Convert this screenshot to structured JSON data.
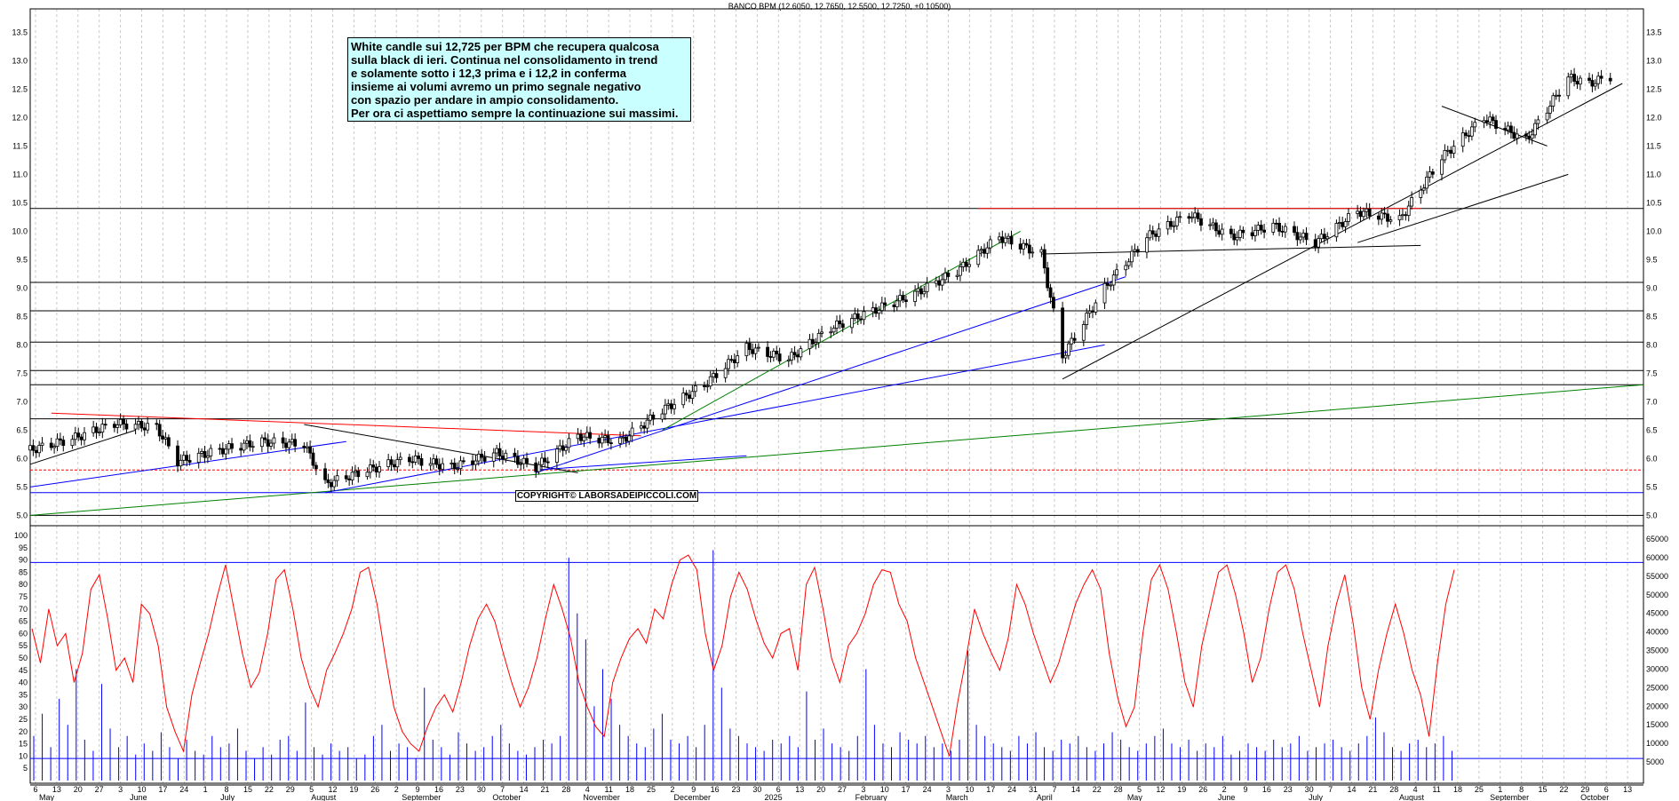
{
  "header": {
    "title": "BANCO BPM (12.6050, 12.7650, 12.5500, 12.7250, +0.10500)"
  },
  "note": {
    "lines": [
      "White candle sui 12,725 per BPM che recupera qualcosa",
      "sulla black di ieri. Continua nel consolidamento in trend",
      "e solamente sotto i 12,3 prima e i 12,2 in conferma",
      "insieme ai volumi avremo un primo segnale negativo",
      "con spazio per andare in ampio consolidamento.",
      "Per ora ci aspettiamo sempre la continuazione sui massimi."
    ]
  },
  "copyright": "COPYRIGHT© LABORSADEIPICCOLI.COM",
  "colors": {
    "price": "#000000",
    "oscillator": "#ff0000",
    "volume": "#0000ff",
    "support": "#0000ff",
    "trend_green": "#008000",
    "resistance_red": "#ff0000"
  },
  "chart_data": [
    {
      "type": "candlestick",
      "title": "BANCO BPM (12.6050, 12.7650, 12.5500, 12.7250, +0.10500)",
      "y_ticks": [
        "5.0",
        "5.5",
        "6.0",
        "6.5",
        "7.0",
        "7.5",
        "8.0",
        "8.5",
        "9.0",
        "9.5",
        "10.0",
        "10.5",
        "11.0",
        "11.5",
        "12.0",
        "12.5",
        "13.0",
        "13.5"
      ],
      "ylim": [
        4.85,
        13.85
      ],
      "x_months": [
        "May",
        "June",
        "July",
        "August",
        "September",
        "October",
        "November",
        "December",
        "2025",
        "February",
        "March",
        "April",
        "May",
        "June",
        "July",
        "August",
        "September",
        "October"
      ],
      "x_days": [
        "6",
        "13",
        "20",
        "27",
        "3",
        "10",
        "17",
        "24",
        "1",
        "8",
        "15",
        "22",
        "29",
        "5",
        "12",
        "19",
        "26",
        "2",
        "9",
        "16",
        "23",
        "30",
        "7",
        "14",
        "21",
        "28",
        "4",
        "11",
        "18",
        "25",
        "2",
        "9",
        "16",
        "23",
        "30",
        "6",
        "13",
        "20",
        "27",
        "3",
        "10",
        "17",
        "24",
        "3",
        "10",
        "17",
        "24",
        "31",
        "7",
        "14",
        "22",
        "28",
        "5",
        "12",
        "19",
        "26",
        "2",
        "9",
        "16",
        "23",
        "30",
        "7",
        "14",
        "21",
        "28",
        "4",
        "11",
        "18",
        "25",
        "1",
        "8",
        "15",
        "22",
        "29",
        "6",
        "13"
      ],
      "x_range": [
        "2024-04-29",
        "2025-10-17"
      ],
      "close_series": [
        [
          "2024-04-29",
          6.15
        ],
        [
          "2024-05-13",
          6.35
        ],
        [
          "2024-05-27",
          6.62
        ],
        [
          "2024-06-10",
          6.55
        ],
        [
          "2024-06-17",
          5.95
        ],
        [
          "2024-07-01",
          6.15
        ],
        [
          "2024-07-15",
          6.3
        ],
        [
          "2024-07-29",
          6.25
        ],
        [
          "2024-08-05",
          5.55
        ],
        [
          "2024-08-19",
          5.8
        ],
        [
          "2024-09-02",
          6.0
        ],
        [
          "2024-09-16",
          5.85
        ],
        [
          "2024-10-01",
          6.1
        ],
        [
          "2024-10-14",
          5.85
        ],
        [
          "2024-10-28",
          6.4
        ],
        [
          "2024-11-11",
          6.3
        ],
        [
          "2024-11-25",
          6.85
        ],
        [
          "2024-12-09",
          7.3
        ],
        [
          "2024-12-23",
          7.95
        ],
        [
          "2025-01-06",
          7.75
        ],
        [
          "2025-01-20",
          8.3
        ],
        [
          "2025-02-03",
          8.6
        ],
        [
          "2025-02-17",
          8.9
        ],
        [
          "2025-03-03",
          9.3
        ],
        [
          "2025-03-17",
          9.9
        ],
        [
          "2025-03-31",
          9.6
        ],
        [
          "2025-04-07",
          7.8
        ],
        [
          "2025-04-21",
          9.0
        ],
        [
          "2025-05-05",
          9.9
        ],
        [
          "2025-05-19",
          10.3
        ],
        [
          "2025-06-02",
          9.9
        ],
        [
          "2025-06-16",
          10.1
        ],
        [
          "2025-06-30",
          9.8
        ],
        [
          "2025-07-14",
          10.35
        ],
        [
          "2025-07-28",
          10.2
        ],
        [
          "2025-08-11",
          11.3
        ],
        [
          "2025-08-25",
          12.0
        ],
        [
          "2025-09-08",
          11.6
        ],
        [
          "2025-09-22",
          12.7
        ],
        [
          "2025-09-29",
          12.6
        ],
        [
          "2025-10-06",
          12.725
        ]
      ],
      "horizontal_levels": [
        5.0,
        5.4,
        6.7,
        7.3,
        7.55,
        8.05,
        8.6,
        9.1,
        10.4
      ]
    },
    {
      "type": "line",
      "name": "oscillator",
      "y_ticks": [
        "5",
        "10",
        "15",
        "20",
        "25",
        "30",
        "35",
        "40",
        "45",
        "50",
        "55",
        "60",
        "65",
        "70",
        "75",
        "80",
        "85",
        "90",
        "95",
        "100"
      ],
      "ylim": [
        0,
        100
      ],
      "reference_levels": [
        9,
        89
      ],
      "values": [
        62,
        48,
        70,
        55,
        60,
        40,
        52,
        78,
        84,
        66,
        45,
        50,
        40,
        72,
        68,
        55,
        30,
        20,
        12,
        35,
        48,
        60,
        75,
        88,
        70,
        52,
        38,
        44,
        60,
        82,
        86,
        70,
        50,
        38,
        30,
        45,
        52,
        60,
        70,
        85,
        87,
        72,
        50,
        30,
        20,
        15,
        12,
        22,
        30,
        35,
        28,
        40,
        55,
        66,
        72,
        65,
        52,
        40,
        30,
        38,
        50,
        66,
        80,
        70,
        58,
        40,
        30,
        22,
        18,
        40,
        50,
        58,
        62,
        56,
        70,
        66,
        80,
        90,
        92,
        86,
        60,
        45,
        55,
        75,
        85,
        78,
        66,
        56,
        50,
        60,
        62,
        45,
        80,
        87,
        70,
        50,
        40,
        55,
        60,
        68,
        80,
        86,
        85,
        72,
        65,
        50,
        40,
        30,
        20,
        10,
        32,
        50,
        70,
        60,
        52,
        45,
        58,
        80,
        72,
        60,
        50,
        40,
        48,
        60,
        72,
        80,
        86,
        78,
        52,
        34,
        22,
        30,
        60,
        82,
        88,
        78,
        60,
        40,
        30,
        55,
        70,
        85,
        88,
        76,
        60,
        40,
        50,
        70,
        85,
        88,
        78,
        60,
        45,
        30,
        55,
        72,
        84,
        64,
        38,
        25,
        45,
        60,
        72,
        60,
        45,
        35,
        18,
        48,
        72,
        86
      ]
    },
    {
      "type": "bar",
      "name": "volume",
      "y_ticks": [
        "5000",
        "10000",
        "15000",
        "20000",
        "25000",
        "30000",
        "35000",
        "40000",
        "45000",
        "50000",
        "55000",
        "60000",
        "65000"
      ],
      "ylim": [
        0,
        65000
      ],
      "values": [
        12000,
        18000,
        9000,
        22000,
        15000,
        30000,
        11000,
        8000,
        26000,
        14000,
        9000,
        12000,
        7000,
        10000,
        8000,
        13000,
        9000,
        6000,
        11000,
        8000,
        7000,
        12000,
        9000,
        10000,
        14000,
        8000,
        6000,
        9000,
        7000,
        11000,
        12000,
        8000,
        21000,
        9000,
        7000,
        10000,
        8000,
        9000,
        6000,
        7000,
        12000,
        15000,
        8000,
        10000,
        9000,
        6000,
        25000,
        11000,
        9000,
        7000,
        13000,
        10000,
        8000,
        9000,
        12000,
        15000,
        10000,
        8000,
        7000,
        9000,
        11000,
        10000,
        12000,
        60000,
        45000,
        38000,
        20000,
        30000,
        22000,
        15000,
        12000,
        10000,
        9000,
        14000,
        18000,
        11000,
        10000,
        12000,
        9000,
        15000,
        62000,
        25000,
        14000,
        12000,
        10000,
        9000,
        8000,
        11000,
        10000,
        12000,
        9000,
        24000,
        11000,
        14000,
        10000,
        9000,
        8000,
        12000,
        30000,
        15000,
        10000,
        9000,
        13000,
        11000,
        10000,
        12000,
        9000,
        10000,
        8000,
        11000,
        35000,
        15000,
        12000,
        10000,
        9000,
        8000,
        12000,
        10000,
        13000,
        9000,
        8000,
        11000,
        10000,
        12000,
        9000,
        8000,
        10000,
        13000,
        11000,
        9000,
        8000,
        10000,
        12000,
        14000,
        10000,
        9000,
        11000,
        8000,
        10000,
        9000,
        12000,
        7000,
        8000,
        10000,
        9000,
        8000,
        11000,
        9000,
        10000,
        12000,
        8000,
        9000,
        10000,
        11000,
        9000,
        8000,
        10000,
        12000,
        17000,
        13000,
        9000,
        8000,
        10000,
        11000,
        9000,
        10000,
        12000,
        8000
      ]
    }
  ]
}
